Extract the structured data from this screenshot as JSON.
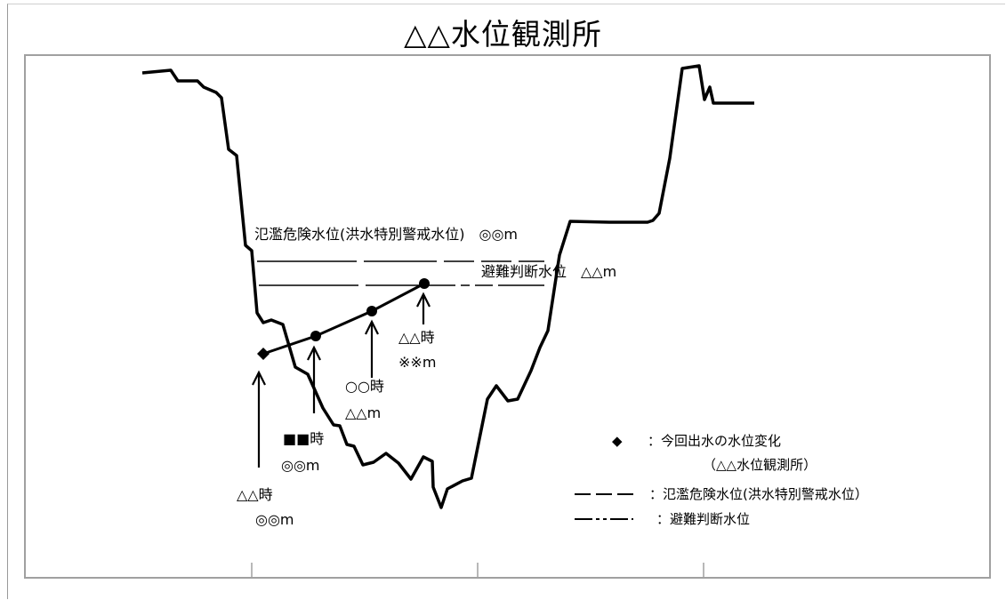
{
  "title": "△△水位観測所",
  "hazard_line_label": "氾濫危険水位(洪水特別警戒水位)　◎◎m",
  "evac_line_label": "避難判断水位　△△m",
  "points": [
    {
      "time": "△△時",
      "level": "◎◎m"
    },
    {
      "time": "■■時",
      "level": "◎◎m"
    },
    {
      "time": "○○時",
      "level": "△△m"
    },
    {
      "time": "△△時",
      "level": "※※m"
    }
  ],
  "legend": {
    "marker_symbol": "◆",
    "marker_text": "：今回出水の水位変化",
    "marker_subtext": "（△△水位観測所）",
    "hazard_text": "：氾濫危険水位(洪水特別警戒水位）",
    "evac_text": "：避難判断水位"
  },
  "colors": {
    "line": "#000000",
    "frame": "#a0a0a0",
    "background": "#ffffff"
  }
}
